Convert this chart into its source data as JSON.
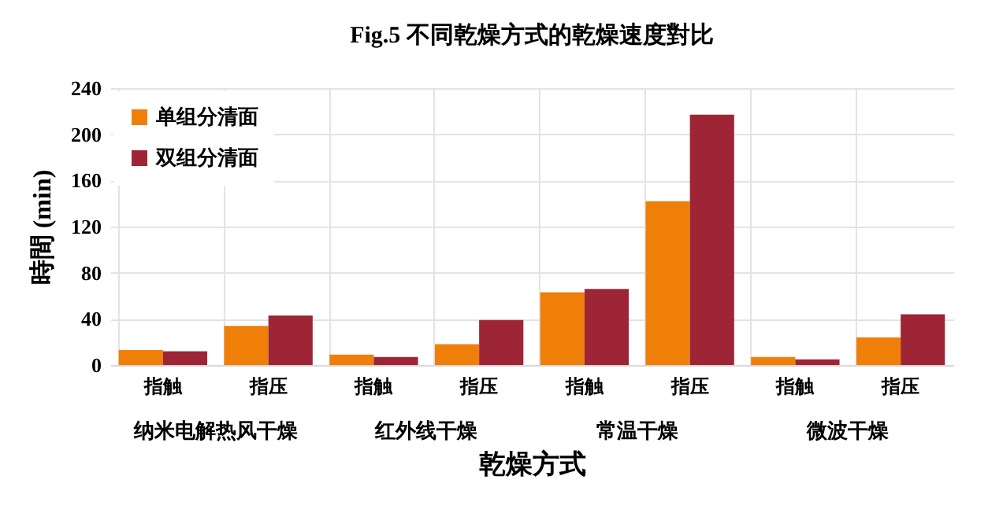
{
  "chart_data": {
    "type": "bar",
    "title": "Fig.5 不同乾燥方式的乾燥速度對比",
    "xlabel": "乾燥方式",
    "ylabel": "時間 (min)",
    "categories": [
      "指触",
      "指压",
      "指触",
      "指压",
      "指触",
      "指压",
      "指触",
      "指压"
    ],
    "series": [
      {
        "name": "单组分清面",
        "color": "#f07f09",
        "values": [
          13,
          34,
          9,
          18,
          63,
          142,
          7,
          24
        ]
      },
      {
        "name": "双组分清面",
        "color": "#9e2536",
        "values": [
          12,
          43,
          7,
          39,
          66,
          217,
          5,
          44
        ]
      }
    ],
    "annotations": [
      "纳米电解热风干燥",
      "红外线干燥",
      "常温干燥",
      "微波干燥"
    ],
    "ylim": [
      0,
      240
    ],
    "yticks": [
      0,
      40,
      80,
      120,
      160,
      200,
      240
    ],
    "grid": true,
    "legend": "top left"
  }
}
